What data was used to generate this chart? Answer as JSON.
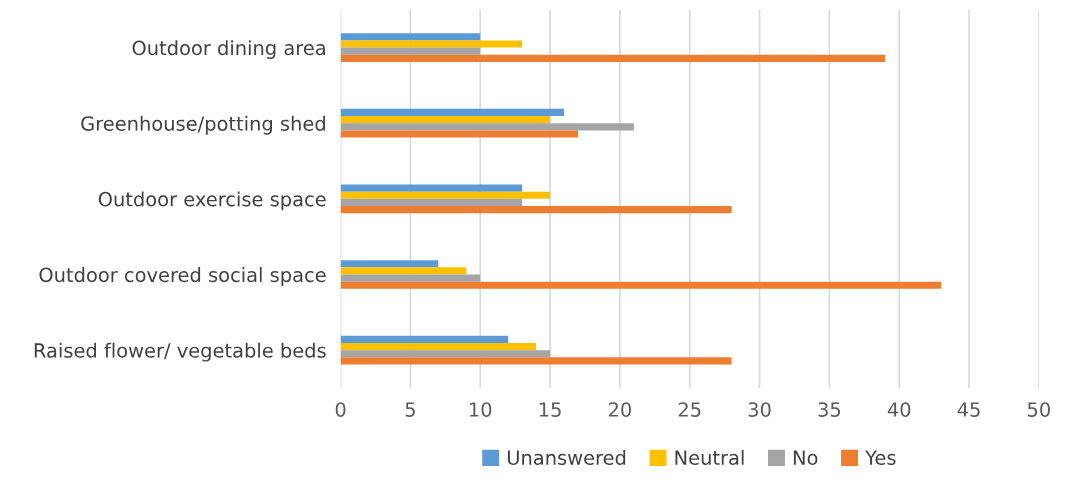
{
  "chart_data": {
    "type": "bar",
    "orientation": "horizontal",
    "categories": [
      "Outdoor dining area",
      "Greenhouse/potting shed",
      "Outdoor exercise space",
      "Outdoor covered social space",
      "Raised flower/ vegetable beds"
    ],
    "series": [
      {
        "name": "Unanswered",
        "color": "#5b9bd5",
        "values": [
          10,
          16,
          13,
          7,
          12
        ]
      },
      {
        "name": "Neutral",
        "color": "#ffc000",
        "values": [
          13,
          15,
          15,
          9,
          14
        ]
      },
      {
        "name": "No",
        "color": "#a5a5a5",
        "values": [
          10,
          21,
          13,
          10,
          15
        ]
      },
      {
        "name": "Yes",
        "color": "#ed7d31",
        "values": [
          39,
          17,
          28,
          43,
          28
        ]
      }
    ],
    "xlim": [
      0,
      50
    ],
    "xticks": [
      0,
      5,
      10,
      15,
      20,
      25,
      30,
      35,
      40,
      45,
      50
    ],
    "grid": "x",
    "legend": "bottom"
  }
}
